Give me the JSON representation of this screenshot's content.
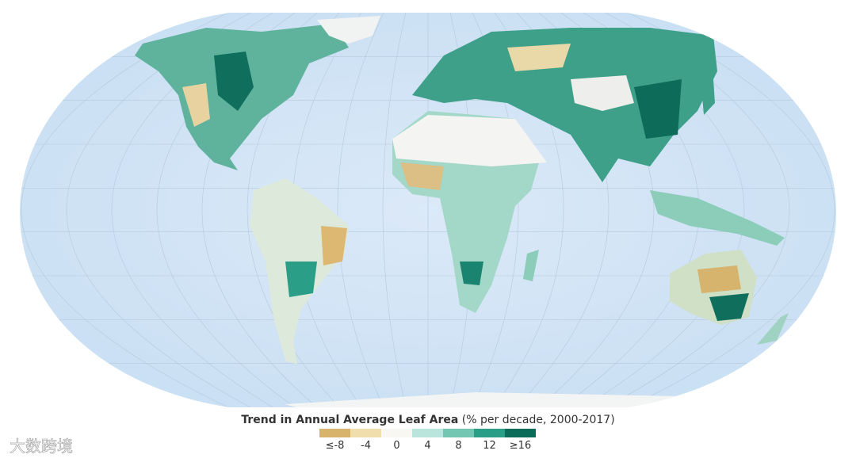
{
  "legend": {
    "title": "Trend in Annual Average Leaf Area",
    "subtitle": "(% per decade, 2000-2017)",
    "items": [
      {
        "label": "≤-8",
        "color": "#d8b36c"
      },
      {
        "label": "-4",
        "color": "#f0deac"
      },
      {
        "label": "0",
        "color": "#f8f7f2"
      },
      {
        "label": "4",
        "color": "#b9e5dc"
      },
      {
        "label": "8",
        "color": "#72c6b2"
      },
      {
        "label": "12",
        "color": "#2b9e87"
      },
      {
        "label": "≥16",
        "color": "#0b6c5a"
      }
    ]
  },
  "watermark": "大数跨境"
}
